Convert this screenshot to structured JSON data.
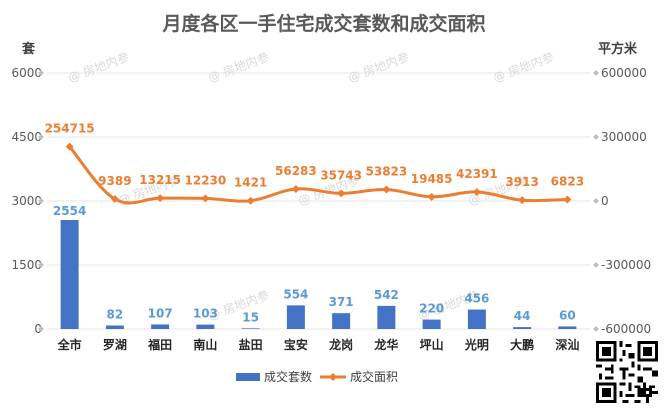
{
  "chart_data": {
    "type": "bar+line",
    "title": "月度各区一手住宅成交套数和成交面积",
    "left_unit": "套",
    "right_unit": "平方米",
    "categories": [
      "全市",
      "罗湖",
      "福田",
      "南山",
      "盐田",
      "宝安",
      "龙岗",
      "龙华",
      "坪山",
      "光明",
      "大鹏",
      "深汕"
    ],
    "series": [
      {
        "name": "成交套数",
        "type": "bar",
        "axis": "left",
        "color": "#4472c4",
        "values": [
          2554,
          82,
          107,
          103,
          15,
          554,
          371,
          542,
          220,
          456,
          44,
          60
        ]
      },
      {
        "name": "成交面积",
        "type": "line",
        "axis": "right",
        "color": "#ed7d31",
        "values": [
          254715,
          9389,
          13215,
          12230,
          1421,
          56283,
          35743,
          53823,
          19485,
          42391,
          3913,
          6823
        ]
      }
    ],
    "left_axis": {
      "min": 0,
      "max": 6000,
      "ticks": [
        "0",
        "1500",
        "3000",
        "4500",
        "6000"
      ]
    },
    "right_axis": {
      "min": -600000,
      "max": 600000,
      "ticks": [
        "-600000",
        "-300000",
        "0",
        "300000",
        "600000"
      ]
    },
    "legend_position": "bottom",
    "watermark": "房地内参"
  }
}
